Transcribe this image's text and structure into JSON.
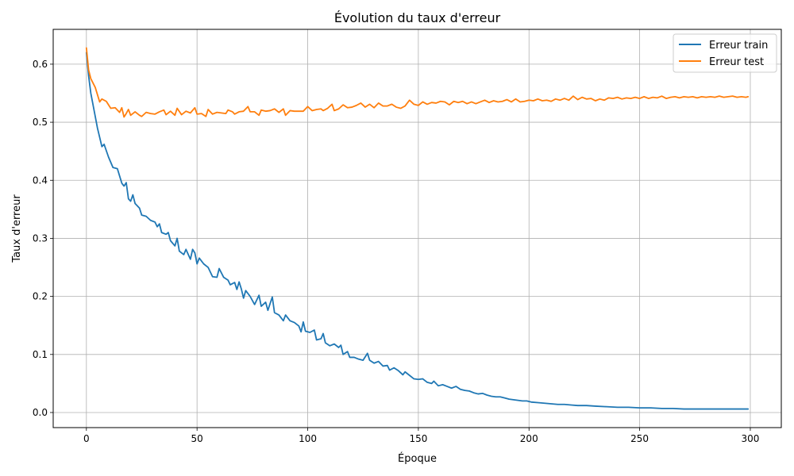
{
  "chart_data": {
    "type": "line",
    "title": "Évolution du taux d'erreur",
    "xlabel": "Époque",
    "ylabel": "Taux d'erreur",
    "xlim": [
      -15,
      314
    ],
    "ylim": [
      -0.026,
      0.66
    ],
    "xticks": [
      0,
      50,
      100,
      150,
      200,
      250,
      300
    ],
    "yticks": [
      0.0,
      0.1,
      0.2,
      0.3,
      0.4,
      0.5,
      0.6
    ],
    "x_tick_labels": [
      "0",
      "50",
      "100",
      "150",
      "200",
      "250",
      "300"
    ],
    "y_tick_labels": [
      "0.0",
      "0.1",
      "0.2",
      "0.3",
      "0.4",
      "0.5",
      "0.6"
    ],
    "grid": true,
    "legend_position": "top-right",
    "series": [
      {
        "name": "Erreur train",
        "color": "#1f77b4",
        "points": [
          [
            0,
            0.62
          ],
          [
            1,
            0.58
          ],
          [
            2,
            0.55
          ],
          [
            3,
            0.53
          ],
          [
            5,
            0.49
          ],
          [
            7,
            0.458
          ],
          [
            8,
            0.462
          ],
          [
            10,
            0.44
          ],
          [
            12,
            0.422
          ],
          [
            14,
            0.42
          ],
          [
            16,
            0.395
          ],
          [
            17,
            0.39
          ],
          [
            18,
            0.396
          ],
          [
            19,
            0.368
          ],
          [
            20,
            0.364
          ],
          [
            21,
            0.375
          ],
          [
            22,
            0.36
          ],
          [
            24,
            0.352
          ],
          [
            25,
            0.34
          ],
          [
            27,
            0.338
          ],
          [
            29,
            0.331
          ],
          [
            31,
            0.328
          ],
          [
            32,
            0.32
          ],
          [
            33,
            0.325
          ],
          [
            34,
            0.31
          ],
          [
            36,
            0.307
          ],
          [
            37,
            0.31
          ],
          [
            38,
            0.296
          ],
          [
            40,
            0.287
          ],
          [
            41,
            0.3
          ],
          [
            42,
            0.278
          ],
          [
            44,
            0.272
          ],
          [
            45,
            0.281
          ],
          [
            47,
            0.264
          ],
          [
            48,
            0.281
          ],
          [
            49,
            0.275
          ],
          [
            50,
            0.256
          ],
          [
            51,
            0.266
          ],
          [
            53,
            0.256
          ],
          [
            55,
            0.25
          ],
          [
            57,
            0.234
          ],
          [
            59,
            0.233
          ],
          [
            60,
            0.248
          ],
          [
            62,
            0.233
          ],
          [
            64,
            0.228
          ],
          [
            65,
            0.22
          ],
          [
            67,
            0.224
          ],
          [
            68,
            0.212
          ],
          [
            69,
            0.225
          ],
          [
            70,
            0.213
          ],
          [
            71,
            0.197
          ],
          [
            72,
            0.21
          ],
          [
            74,
            0.2
          ],
          [
            76,
            0.186
          ],
          [
            78,
            0.202
          ],
          [
            79,
            0.183
          ],
          [
            81,
            0.19
          ],
          [
            82,
            0.176
          ],
          [
            84,
            0.199
          ],
          [
            85,
            0.172
          ],
          [
            87,
            0.168
          ],
          [
            89,
            0.158
          ],
          [
            90,
            0.168
          ],
          [
            92,
            0.158
          ],
          [
            94,
            0.155
          ],
          [
            96,
            0.149
          ],
          [
            97,
            0.139
          ],
          [
            98,
            0.156
          ],
          [
            99,
            0.14
          ],
          [
            101,
            0.138
          ],
          [
            103,
            0.142
          ],
          [
            104,
            0.125
          ],
          [
            106,
            0.127
          ],
          [
            107,
            0.136
          ],
          [
            108,
            0.12
          ],
          [
            110,
            0.115
          ],
          [
            112,
            0.118
          ],
          [
            114,
            0.112
          ],
          [
            115,
            0.116
          ],
          [
            116,
            0.1
          ],
          [
            118,
            0.105
          ],
          [
            119,
            0.095
          ],
          [
            121,
            0.095
          ],
          [
            123,
            0.092
          ],
          [
            125,
            0.09
          ],
          [
            127,
            0.102
          ],
          [
            128,
            0.09
          ],
          [
            130,
            0.085
          ],
          [
            132,
            0.088
          ],
          [
            134,
            0.08
          ],
          [
            136,
            0.081
          ],
          [
            137,
            0.073
          ],
          [
            139,
            0.077
          ],
          [
            141,
            0.072
          ],
          [
            143,
            0.065
          ],
          [
            144,
            0.07
          ],
          [
            146,
            0.064
          ],
          [
            148,
            0.058
          ],
          [
            150,
            0.057
          ],
          [
            152,
            0.058
          ],
          [
            154,
            0.052
          ],
          [
            156,
            0.05
          ],
          [
            157,
            0.054
          ],
          [
            159,
            0.046
          ],
          [
            161,
            0.048
          ],
          [
            163,
            0.045
          ],
          [
            165,
            0.042
          ],
          [
            167,
            0.045
          ],
          [
            169,
            0.04
          ],
          [
            171,
            0.038
          ],
          [
            173,
            0.037
          ],
          [
            175,
            0.034
          ],
          [
            177,
            0.032
          ],
          [
            179,
            0.033
          ],
          [
            181,
            0.03
          ],
          [
            183,
            0.028
          ],
          [
            185,
            0.027
          ],
          [
            187,
            0.027
          ],
          [
            189,
            0.025
          ],
          [
            191,
            0.023
          ],
          [
            193,
            0.022
          ],
          [
            195,
            0.021
          ],
          [
            197,
            0.02
          ],
          [
            199,
            0.02
          ],
          [
            201,
            0.018
          ],
          [
            204,
            0.017
          ],
          [
            207,
            0.016
          ],
          [
            210,
            0.015
          ],
          [
            213,
            0.014
          ],
          [
            216,
            0.014
          ],
          [
            219,
            0.013
          ],
          [
            222,
            0.012
          ],
          [
            226,
            0.012
          ],
          [
            230,
            0.011
          ],
          [
            235,
            0.01
          ],
          [
            240,
            0.009
          ],
          [
            245,
            0.009
          ],
          [
            250,
            0.008
          ],
          [
            255,
            0.008
          ],
          [
            260,
            0.007
          ],
          [
            265,
            0.007
          ],
          [
            270,
            0.006
          ],
          [
            275,
            0.006
          ],
          [
            280,
            0.006
          ],
          [
            285,
            0.006
          ],
          [
            290,
            0.006
          ],
          [
            295,
            0.006
          ],
          [
            299,
            0.006
          ]
        ]
      },
      {
        "name": "Erreur test",
        "color": "#ff7f0e",
        "points": [
          [
            0,
            0.628
          ],
          [
            1,
            0.59
          ],
          [
            2,
            0.575
          ],
          [
            4,
            0.56
          ],
          [
            6,
            0.535
          ],
          [
            7,
            0.54
          ],
          [
            9,
            0.536
          ],
          [
            11,
            0.524
          ],
          [
            13,
            0.525
          ],
          [
            15,
            0.517
          ],
          [
            16,
            0.525
          ],
          [
            17,
            0.509
          ],
          [
            18,
            0.515
          ],
          [
            19,
            0.522
          ],
          [
            20,
            0.512
          ],
          [
            22,
            0.518
          ],
          [
            24,
            0.512
          ],
          [
            25,
            0.51
          ],
          [
            27,
            0.517
          ],
          [
            29,
            0.515
          ],
          [
            31,
            0.514
          ],
          [
            33,
            0.518
          ],
          [
            35,
            0.521
          ],
          [
            36,
            0.513
          ],
          [
            38,
            0.519
          ],
          [
            40,
            0.512
          ],
          [
            41,
            0.524
          ],
          [
            43,
            0.513
          ],
          [
            45,
            0.519
          ],
          [
            47,
            0.516
          ],
          [
            49,
            0.525
          ],
          [
            50,
            0.514
          ],
          [
            52,
            0.515
          ],
          [
            54,
            0.51
          ],
          [
            55,
            0.522
          ],
          [
            57,
            0.514
          ],
          [
            59,
            0.517
          ],
          [
            61,
            0.516
          ],
          [
            63,
            0.515
          ],
          [
            64,
            0.521
          ],
          [
            66,
            0.518
          ],
          [
            67,
            0.514
          ],
          [
            69,
            0.518
          ],
          [
            71,
            0.519
          ],
          [
            73,
            0.527
          ],
          [
            74,
            0.518
          ],
          [
            76,
            0.518
          ],
          [
            78,
            0.512
          ],
          [
            79,
            0.521
          ],
          [
            81,
            0.519
          ],
          [
            83,
            0.52
          ],
          [
            85,
            0.523
          ],
          [
            87,
            0.517
          ],
          [
            89,
            0.523
          ],
          [
            90,
            0.512
          ],
          [
            92,
            0.52
          ],
          [
            94,
            0.519
          ],
          [
            96,
            0.519
          ],
          [
            98,
            0.519
          ],
          [
            100,
            0.527
          ],
          [
            102,
            0.52
          ],
          [
            104,
            0.522
          ],
          [
            106,
            0.523
          ],
          [
            107,
            0.52
          ],
          [
            109,
            0.524
          ],
          [
            111,
            0.531
          ],
          [
            112,
            0.52
          ],
          [
            114,
            0.523
          ],
          [
            116,
            0.53
          ],
          [
            118,
            0.525
          ],
          [
            120,
            0.526
          ],
          [
            122,
            0.529
          ],
          [
            124,
            0.533
          ],
          [
            126,
            0.526
          ],
          [
            128,
            0.531
          ],
          [
            130,
            0.525
          ],
          [
            132,
            0.533
          ],
          [
            134,
            0.528
          ],
          [
            136,
            0.528
          ],
          [
            138,
            0.531
          ],
          [
            140,
            0.526
          ],
          [
            142,
            0.524
          ],
          [
            144,
            0.528
          ],
          [
            146,
            0.538
          ],
          [
            148,
            0.531
          ],
          [
            150,
            0.529
          ],
          [
            152,
            0.535
          ],
          [
            154,
            0.531
          ],
          [
            156,
            0.534
          ],
          [
            158,
            0.533
          ],
          [
            160,
            0.536
          ],
          [
            162,
            0.535
          ],
          [
            164,
            0.53
          ],
          [
            166,
            0.536
          ],
          [
            168,
            0.534
          ],
          [
            170,
            0.536
          ],
          [
            172,
            0.532
          ],
          [
            174,
            0.535
          ],
          [
            176,
            0.532
          ],
          [
            178,
            0.535
          ],
          [
            180,
            0.538
          ],
          [
            182,
            0.534
          ],
          [
            184,
            0.537
          ],
          [
            186,
            0.535
          ],
          [
            188,
            0.536
          ],
          [
            190,
            0.539
          ],
          [
            192,
            0.535
          ],
          [
            194,
            0.54
          ],
          [
            196,
            0.535
          ],
          [
            198,
            0.536
          ],
          [
            200,
            0.538
          ],
          [
            202,
            0.537
          ],
          [
            204,
            0.54
          ],
          [
            206,
            0.537
          ],
          [
            208,
            0.538
          ],
          [
            210,
            0.536
          ],
          [
            212,
            0.54
          ],
          [
            214,
            0.538
          ],
          [
            216,
            0.541
          ],
          [
            218,
            0.538
          ],
          [
            220,
            0.545
          ],
          [
            222,
            0.539
          ],
          [
            224,
            0.543
          ],
          [
            226,
            0.54
          ],
          [
            228,
            0.541
          ],
          [
            230,
            0.537
          ],
          [
            232,
            0.54
          ],
          [
            234,
            0.538
          ],
          [
            236,
            0.542
          ],
          [
            238,
            0.541
          ],
          [
            240,
            0.543
          ],
          [
            242,
            0.54
          ],
          [
            244,
            0.542
          ],
          [
            246,
            0.541
          ],
          [
            248,
            0.543
          ],
          [
            250,
            0.541
          ],
          [
            252,
            0.544
          ],
          [
            254,
            0.541
          ],
          [
            256,
            0.543
          ],
          [
            258,
            0.542
          ],
          [
            260,
            0.545
          ],
          [
            262,
            0.541
          ],
          [
            264,
            0.543
          ],
          [
            266,
            0.544
          ],
          [
            268,
            0.542
          ],
          [
            270,
            0.544
          ],
          [
            272,
            0.543
          ],
          [
            274,
            0.544
          ],
          [
            276,
            0.542
          ],
          [
            278,
            0.544
          ],
          [
            280,
            0.543
          ],
          [
            282,
            0.544
          ],
          [
            284,
            0.543
          ],
          [
            286,
            0.545
          ],
          [
            288,
            0.543
          ],
          [
            290,
            0.544
          ],
          [
            292,
            0.545
          ],
          [
            294,
            0.543
          ],
          [
            296,
            0.544
          ],
          [
            298,
            0.543
          ],
          [
            299,
            0.544
          ]
        ]
      }
    ]
  }
}
